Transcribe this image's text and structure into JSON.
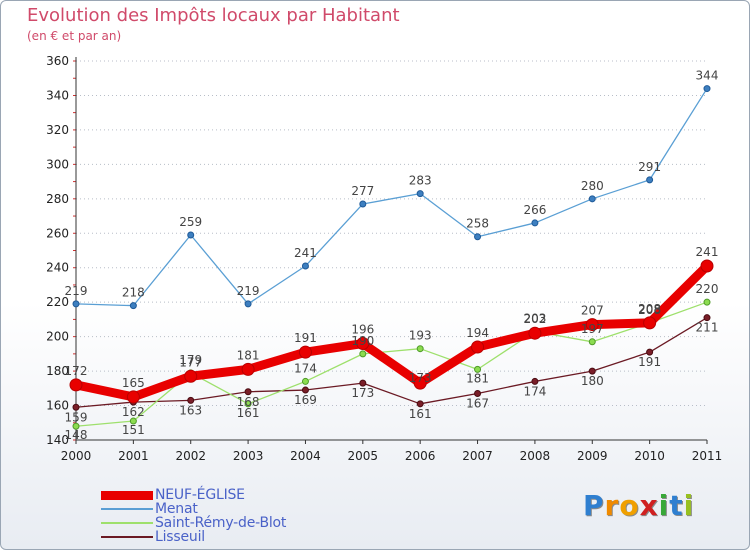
{
  "header": {
    "title": "Evolution des Impôts locaux par Habitant",
    "subtitle": "(en € et par an)"
  },
  "chart_data": {
    "type": "line",
    "title": "Evolution des Impôts locaux par Habitant",
    "subtitle": "(en € et par an)",
    "xlabel": "",
    "ylabel": "",
    "x": [
      "2000",
      "2001",
      "2002",
      "2003",
      "2004",
      "2005",
      "2006",
      "2007",
      "2008",
      "2009",
      "2010",
      "2011"
    ],
    "ylim": [
      140,
      360
    ],
    "yticks": [
      "140",
      "160",
      "180",
      "200",
      "220",
      "240",
      "260",
      "280",
      "300",
      "320",
      "340",
      "360"
    ],
    "grid": "horizontal dotted",
    "legend_position": "bottom-left",
    "series": [
      {
        "name": "NEUF-ÉGLISE",
        "color": "#e80000",
        "values": [
          172,
          165,
          177,
          181,
          191,
          196,
          173,
          194,
          202,
          207,
          208,
          241
        ],
        "labels": [
          "172",
          "165",
          "177",
          "181",
          "191",
          "196",
          "173",
          "194",
          "202",
          "207",
          "208",
          "241"
        ]
      },
      {
        "name": "Menat",
        "color": "#5a9fd4",
        "values": [
          219,
          218,
          259,
          219,
          241,
          277,
          283,
          258,
          266,
          280,
          291,
          344
        ],
        "labels": [
          "219",
          "218",
          "259",
          "219",
          "241",
          "277",
          "283",
          "258",
          "266",
          "280",
          "291",
          "344"
        ]
      },
      {
        "name": "Saint-Rémy-de-Blot",
        "color": "#9ee06c",
        "values": [
          148,
          151,
          179,
          161,
          174,
          190,
          193,
          181,
          203,
          197,
          208,
          220
        ],
        "labels": [
          "148",
          "151",
          "179",
          "161",
          "174",
          "190",
          "193",
          "181",
          "203",
          "197",
          "208",
          "220"
        ]
      },
      {
        "name": "Lisseuil",
        "color": "#6b1a24",
        "values": [
          159,
          162,
          163,
          168,
          169,
          173,
          161,
          167,
          174,
          180,
          191,
          211
        ],
        "labels": [
          "159",
          "162",
          "163",
          "168",
          "169",
          "173",
          "161",
          "167",
          "174",
          "180",
          "191",
          "211"
        ]
      }
    ]
  },
  "legend": [
    {
      "label": "NEUF-ÉGLISE",
      "color": "#e80000"
    },
    {
      "label": "Menat",
      "color": "#5a9fd4"
    },
    {
      "label": "Saint-Rémy-de-Blot",
      "color": "#9ee06c"
    },
    {
      "label": "Lisseuil",
      "color": "#6b1a24"
    }
  ],
  "brand": {
    "letters": [
      "P",
      "r",
      "o",
      "x",
      "i",
      "t",
      "i"
    ],
    "colors": [
      "#2f7fd0",
      "#f08a00",
      "#f0a000",
      "#d02020",
      "#38a838",
      "#2f7fd0",
      "#98c020"
    ]
  }
}
